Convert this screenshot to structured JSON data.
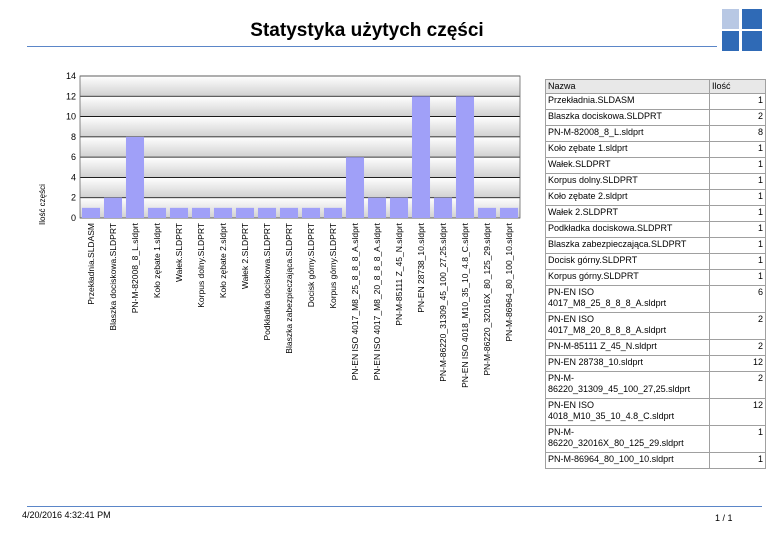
{
  "header": {
    "title": "Statystyka użytych części"
  },
  "footer": {
    "date": "4/20/2016 4:32:41 PM",
    "page": "1 / 1"
  },
  "colors": {
    "bar": "#a0a0f8",
    "accent": "#5b86c8",
    "logo_dark": "#2f6ab6",
    "logo_light": "#b8c8e4"
  },
  "table": {
    "headers": [
      "Nazwa",
      "Ilość"
    ],
    "rows": [
      [
        "Przekładnia.SLDASM",
        "1"
      ],
      [
        "Blaszka dociskowa.SLDPRT",
        "2"
      ],
      [
        "PN-M-82008_8_L.sldprt",
        "8"
      ],
      [
        "Koło zębate 1.sldprt",
        "1"
      ],
      [
        "Wałek.SLDPRT",
        "1"
      ],
      [
        "Korpus dolny.SLDPRT",
        "1"
      ],
      [
        "Koło zębate 2.sldprt",
        "1"
      ],
      [
        "Wałek 2.SLDPRT",
        "1"
      ],
      [
        "Podkładka dociskowa.SLDPRT",
        "1"
      ],
      [
        "Blaszka zabezpieczająca.SLDPRT",
        "1"
      ],
      [
        "Docisk górny.SLDPRT",
        "1"
      ],
      [
        "Korpus górny.SLDPRT",
        "1"
      ],
      [
        "PN-EN ISO 4017_M8_25_8_8_8_A.sldprt",
        "6"
      ],
      [
        "PN-EN ISO 4017_M8_20_8_8_8_A.sldprt",
        "2"
      ],
      [
        "PN-M-85111 Z_45_N.sldprt",
        "2"
      ],
      [
        "PN-EN 28738_10.sldprt",
        "12"
      ],
      [
        "PN-M-86220_31309_45_100_27,25.sldprt",
        "2"
      ],
      [
        "PN-EN ISO 4018_M10_35_10_4.8_C.sldprt",
        "12"
      ],
      [
        "PN-M-86220_32016X_80_125_29.sldprt",
        "1"
      ],
      [
        "PN-M-86964_80_100_10.sldprt",
        "1"
      ]
    ]
  },
  "chart_data": {
    "type": "bar",
    "ylabel": "Ilość części",
    "xlabel": "",
    "ylim": [
      0,
      14
    ],
    "yticks": [
      0,
      2,
      4,
      6,
      8,
      10,
      12,
      14
    ],
    "grid": true,
    "categories": [
      "Przekładnia.SLDASM",
      "Blaszka dociskowa.SLDPRT",
      "PN-M-82008_8_L.sldprt",
      "Koło zębate 1.sldprt",
      "Wałek.SLDPRT",
      "Korpus dolny.SLDPRT",
      "Koło zębate 2.sldprt",
      "Wałek 2.SLDPRT",
      "Podkładka dociskowa.SLDPRT",
      "Blaszka zabezpieczająca.SLDPRT",
      "Docisk górny.SLDPRT",
      "Korpus górny.SLDPRT",
      "PN-EN ISO 4017_M8_25_8_8_8_A.sldprt",
      "PN-EN ISO 4017_M8_20_8_8_8_A.sldprt",
      "PN-M-85111 Z_45_N.sldprt",
      "PN-EN 28738_10.sldprt",
      "PN-M-86220_31309_45_100_27,25.sldprt",
      "PN-EN ISO 4018_M10_35_10_4.8_C.sldprt",
      "PN-M-86220_32016X_80_125_29.sldprt",
      "PN-M-86964_80_100_10.sldprt"
    ],
    "values": [
      1,
      2,
      8,
      1,
      1,
      1,
      1,
      1,
      1,
      1,
      1,
      1,
      6,
      2,
      2,
      12,
      2,
      12,
      1,
      1
    ]
  }
}
